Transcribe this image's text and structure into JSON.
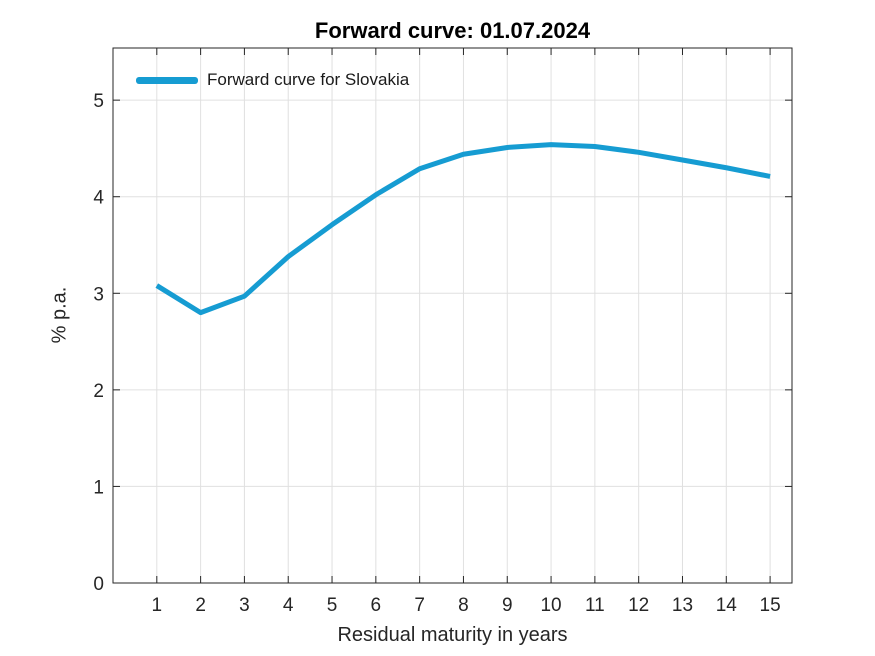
{
  "chart_data": {
    "type": "line",
    "title": "Forward curve: 01.07.2024",
    "xlabel": "Residual maturity in years",
    "ylabel": "% p.a.",
    "x": [
      1,
      2,
      3,
      4,
      5,
      6,
      7,
      8,
      9,
      10,
      11,
      12,
      13,
      14,
      15
    ],
    "series": [
      {
        "name": "Forward curve for Slovakia",
        "color": "#169cd2",
        "values": [
          3.08,
          2.8,
          2.97,
          3.38,
          3.71,
          4.02,
          4.29,
          4.44,
          4.51,
          4.54,
          4.52,
          4.46,
          4.38,
          4.3,
          4.21
        ]
      }
    ],
    "xlim": [
      0,
      15.5
    ],
    "ylim": [
      0,
      5.54
    ],
    "xticks": [
      1,
      2,
      3,
      4,
      5,
      6,
      7,
      8,
      9,
      10,
      11,
      12,
      13,
      14,
      15
    ],
    "yticks": [
      0,
      1,
      2,
      3,
      4,
      5
    ],
    "grid": true,
    "box": true,
    "tick_direction": "in",
    "legend_position": "top-left-inside",
    "line_width": 5,
    "colors": {
      "line": "#169cd2",
      "grid": "#e0e0e0",
      "axis": "#262626",
      "tick_labels": "#262626",
      "title": "#000000",
      "background": "#ffffff"
    }
  }
}
